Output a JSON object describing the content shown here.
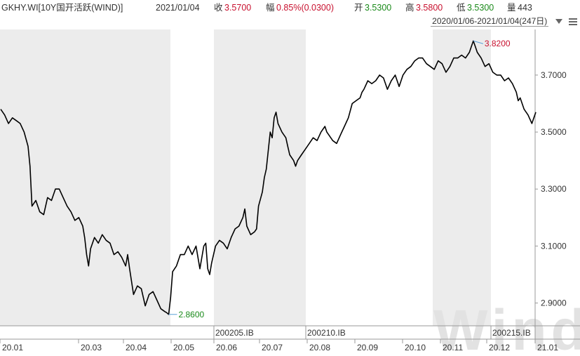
{
  "header": {
    "ticker": "GKHY.WI[10Y国开活跃(WIND)]",
    "date": "2021/01/04",
    "close_label": "收",
    "close_value": "3.5700",
    "change_label": "幅",
    "change_value": "0.85%(0.0300)",
    "open_label": "开",
    "open_value": "3.5300",
    "high_label": "高",
    "high_value": "3.5800",
    "low_label": "低",
    "low_value": "3.5300",
    "volume_label": "量",
    "volume_value": "443"
  },
  "range_selector": {
    "text": "2020/01/06-2021/01/04(247日)",
    "dropdown_icon": "triangle-down-icon",
    "menu_icon": "menu-icon"
  },
  "watermark": "Wind",
  "colors": {
    "shade": "#ececec",
    "line": "#000000",
    "high_marker": "#c8102e",
    "low_marker": "#1a8a1a",
    "marker_line": "#5aa0d8"
  },
  "chart_data": {
    "type": "line",
    "series": [
      {
        "values": [
          [
            0,
            3.58
          ],
          [
            2,
            3.56
          ],
          [
            4,
            3.53
          ],
          [
            6,
            3.55
          ],
          [
            8,
            3.54
          ],
          [
            10,
            3.53
          ],
          [
            12,
            3.5
          ],
          [
            14,
            3.45
          ],
          [
            15,
            3.38
          ],
          [
            16,
            3.24
          ],
          [
            18,
            3.26
          ],
          [
            20,
            3.22
          ],
          [
            22,
            3.21
          ],
          [
            24,
            3.27
          ],
          [
            26,
            3.26
          ],
          [
            28,
            3.3
          ],
          [
            30,
            3.3
          ],
          [
            32,
            3.27
          ],
          [
            34,
            3.24
          ],
          [
            36,
            3.22
          ],
          [
            38,
            3.19
          ],
          [
            40,
            3.2
          ],
          [
            42,
            3.17
          ],
          [
            43,
            3.13
          ],
          [
            44,
            3.07
          ],
          [
            45,
            3.03
          ],
          [
            46,
            3.09
          ],
          [
            48,
            3.13
          ],
          [
            50,
            3.11
          ],
          [
            52,
            3.14
          ],
          [
            54,
            3.12
          ],
          [
            56,
            3.11
          ],
          [
            58,
            3.07
          ],
          [
            60,
            3.08
          ],
          [
            62,
            3.06
          ],
          [
            64,
            3.03
          ],
          [
            65,
            3.07
          ],
          [
            66,
            3.02
          ],
          [
            68,
            2.93
          ],
          [
            70,
            2.96
          ],
          [
            72,
            2.95
          ],
          [
            74,
            2.89
          ],
          [
            76,
            2.93
          ],
          [
            78,
            2.94
          ],
          [
            80,
            2.91
          ],
          [
            82,
            2.88
          ],
          [
            84,
            2.87
          ],
          [
            85,
            2.866
          ],
          [
            86,
            2.86
          ],
          [
            87,
            2.92
          ],
          [
            88,
            3.01
          ],
          [
            90,
            3.03
          ],
          [
            92,
            3.07
          ],
          [
            94,
            3.07
          ],
          [
            96,
            3.1
          ],
          [
            98,
            3.07
          ],
          [
            100,
            3.1
          ],
          [
            102,
            3.02
          ],
          [
            104,
            3.1
          ],
          [
            105,
            3.11
          ],
          [
            106,
            3.02
          ],
          [
            107,
            3.0
          ],
          [
            108,
            3.04
          ],
          [
            110,
            3.1
          ],
          [
            112,
            3.12
          ],
          [
            114,
            3.11
          ],
          [
            116,
            3.09
          ],
          [
            118,
            3.13
          ],
          [
            120,
            3.16
          ],
          [
            122,
            3.17
          ],
          [
            124,
            3.2
          ],
          [
            125,
            3.23
          ],
          [
            126,
            3.17
          ],
          [
            128,
            3.14
          ],
          [
            130,
            3.15
          ],
          [
            131,
            3.16
          ],
          [
            132,
            3.24
          ],
          [
            134,
            3.29
          ],
          [
            135,
            3.34
          ],
          [
            136,
            3.37
          ],
          [
            138,
            3.5
          ],
          [
            139,
            3.48
          ],
          [
            140,
            3.55
          ],
          [
            141,
            3.57
          ],
          [
            142,
            3.53
          ],
          [
            144,
            3.5
          ],
          [
            146,
            3.48
          ],
          [
            147,
            3.45
          ],
          [
            148,
            3.42
          ],
          [
            150,
            3.4
          ],
          [
            151,
            3.38
          ],
          [
            152,
            3.4
          ],
          [
            154,
            3.42
          ],
          [
            156,
            3.44
          ],
          [
            158,
            3.46
          ],
          [
            160,
            3.48
          ],
          [
            162,
            3.47
          ],
          [
            164,
            3.5
          ],
          [
            166,
            3.52
          ],
          [
            167,
            3.5
          ],
          [
            168,
            3.49
          ],
          [
            170,
            3.47
          ],
          [
            172,
            3.46
          ],
          [
            174,
            3.49
          ],
          [
            176,
            3.52
          ],
          [
            178,
            3.55
          ],
          [
            180,
            3.6
          ],
          [
            182,
            3.61
          ],
          [
            184,
            3.62
          ],
          [
            185,
            3.64
          ],
          [
            186,
            3.65
          ],
          [
            188,
            3.68
          ],
          [
            190,
            3.67
          ],
          [
            192,
            3.68
          ],
          [
            194,
            3.7
          ],
          [
            196,
            3.69
          ],
          [
            198,
            3.65
          ],
          [
            200,
            3.68
          ],
          [
            202,
            3.7
          ],
          [
            204,
            3.66
          ],
          [
            206,
            3.7
          ],
          [
            208,
            3.72
          ],
          [
            210,
            3.73
          ],
          [
            212,
            3.75
          ],
          [
            214,
            3.76
          ],
          [
            216,
            3.76
          ],
          [
            218,
            3.74
          ],
          [
            220,
            3.73
          ],
          [
            222,
            3.72
          ],
          [
            224,
            3.75
          ],
          [
            226,
            3.74
          ],
          [
            228,
            3.71
          ],
          [
            230,
            3.73
          ],
          [
            232,
            3.76
          ],
          [
            234,
            3.76
          ],
          [
            236,
            3.77
          ],
          [
            238,
            3.76
          ],
          [
            240,
            3.78
          ],
          [
            241,
            3.8
          ],
          [
            242,
            3.82
          ],
          [
            243,
            3.8
          ],
          [
            244,
            3.78
          ],
          [
            246,
            3.76
          ],
          [
            248,
            3.73
          ],
          [
            250,
            3.74
          ],
          [
            252,
            3.71
          ],
          [
            254,
            3.7
          ],
          [
            256,
            3.7
          ],
          [
            258,
            3.68
          ],
          [
            260,
            3.69
          ],
          [
            262,
            3.67
          ],
          [
            264,
            3.64
          ],
          [
            265,
            3.61
          ],
          [
            266,
            3.62
          ],
          [
            268,
            3.58
          ],
          [
            270,
            3.56
          ],
          [
            272,
            3.53
          ],
          [
            273,
            3.55
          ],
          [
            274,
            3.57
          ]
        ]
      }
    ],
    "y_ticks": [
      "3.7000",
      "3.5000",
      "3.3000",
      "3.1000",
      "2.9000"
    ],
    "x_ticks": [
      "20.01",
      "20.03",
      "20.04",
      "20.05",
      "20.06",
      "20.07",
      "20.08",
      "20.09",
      "20.10",
      "20.11",
      "20.12",
      "21.01"
    ],
    "bond_labels": [
      "200205.IB",
      "200210.IB",
      "200215.IB"
    ],
    "annotations": [
      {
        "label": "3.8200",
        "kind": "high"
      },
      {
        "label": "2.8600",
        "kind": "low"
      }
    ],
    "ylim": [
      2.82,
      3.86
    ],
    "grid": false,
    "xlabel": "",
    "ylabel": ""
  }
}
